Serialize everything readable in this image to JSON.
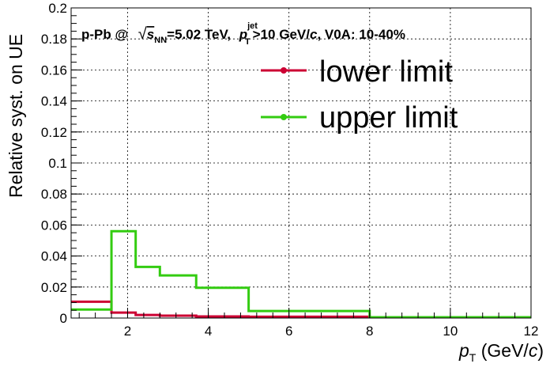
{
  "chart_data": {
    "type": "line",
    "title": "p-Pb @ √s_NN=5.02 TeV, p_T^jet>10 GeV/c, V0A: 10-40%",
    "title_parts": {
      "prefix": "p-Pb @ ",
      "sqrt": "√",
      "s": "s",
      "s_sub": "NN",
      "energy": "=5.02 TeV, ",
      "p": "p",
      "p_sub": "T",
      "p_sup": "jet",
      "cut": ">10 GeV/",
      "c": "c",
      "tail": ", V0A: 10-40%"
    },
    "xlabel": "p_T (GeV/c)",
    "xlabel_parts": {
      "p": "p",
      "sub": "T",
      "pre": " (GeV/",
      "c": "c",
      "post": ")"
    },
    "ylabel": "Relative syst. on UE",
    "xlim": [
      0.6,
      12
    ],
    "ylim": [
      0,
      0.2
    ],
    "xticks": [
      "2",
      "4",
      "6",
      "8",
      "10",
      "12"
    ],
    "yticks": [
      "0",
      "0.02",
      "0.04",
      "0.06",
      "0.08",
      "0.1",
      "0.12",
      "0.14",
      "0.16",
      "0.18",
      "0.2"
    ],
    "grid": true,
    "legend_position": "top-right",
    "bin_edges": [
      0.6,
      1.6,
      2.2,
      2.8,
      3.7,
      5.0,
      8.0,
      12.0
    ],
    "series": [
      {
        "name": "lower limit",
        "color": "#cc0033",
        "values": [
          0.0105,
          0.0035,
          0.002,
          0.0015,
          0.001,
          0.0008,
          0.0005
        ]
      },
      {
        "name": "upper limit",
        "color": "#33cc11",
        "values": [
          0.0055,
          0.056,
          0.033,
          0.0275,
          0.0195,
          0.0045,
          0.0005
        ]
      }
    ]
  }
}
